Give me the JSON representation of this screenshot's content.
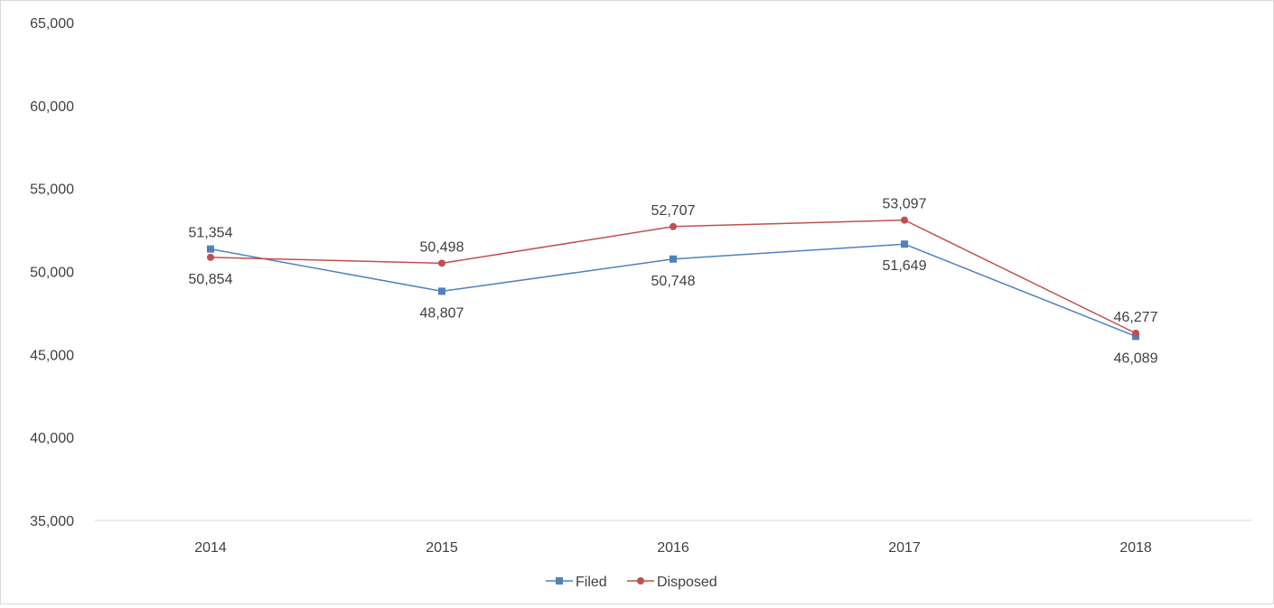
{
  "chart_data": {
    "type": "line",
    "categories": [
      "2014",
      "2015",
      "2016",
      "2017",
      "2018"
    ],
    "ylim": [
      35000,
      65000
    ],
    "yticks": [
      35000,
      40000,
      45000,
      50000,
      55000,
      60000,
      65000
    ],
    "ytick_labels": [
      "35,000",
      "40,000",
      "45,000",
      "50,000",
      "55,000",
      "60,000",
      "65,000"
    ],
    "grid": false,
    "legend_position": "bottom",
    "series": [
      {
        "name": "Filed",
        "color": "#4f81bd",
        "marker": "square",
        "values": [
          51354,
          48807,
          50748,
          51649,
          46089
        ],
        "labels": [
          "51,354",
          "48,807",
          "50,748",
          "51,649",
          "46,089"
        ],
        "label_positions": [
          "above",
          "below",
          "below",
          "below",
          "below"
        ]
      },
      {
        "name": "Disposed",
        "color": "#c0504d",
        "marker": "circle",
        "values": [
          50854,
          50498,
          52707,
          53097,
          46277
        ],
        "labels": [
          "50,854",
          "50,498",
          "52,707",
          "53,097",
          "46,277"
        ],
        "label_positions": [
          "below",
          "above",
          "above",
          "above",
          "above"
        ]
      }
    ]
  }
}
